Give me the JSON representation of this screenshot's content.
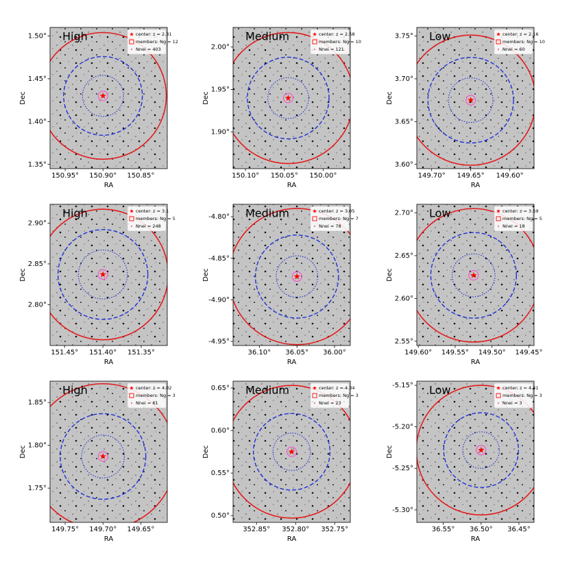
{
  "chart_data": [
    {
      "type": "sky",
      "label": "High",
      "legend": [
        "center: z = 2.31",
        "members: Ng = 12",
        "Nnei = 403"
      ],
      "xlabel": "RA",
      "ylabel": "Dec",
      "xlim": [
        150.97,
        150.815
      ],
      "ylim": [
        1.345,
        1.51
      ],
      "xticks": [
        {
          "value": 150.95,
          "label": "150.95°"
        },
        {
          "value": 150.9,
          "label": "150.90°"
        },
        {
          "value": 150.85,
          "label": "150.85°"
        }
      ],
      "yticks": [
        {
          "value": 1.35,
          "label": "1.35°"
        },
        {
          "value": 1.4,
          "label": "1.40°"
        },
        {
          "value": 1.45,
          "label": "1.45°"
        },
        {
          "value": 1.5,
          "label": "1.50°"
        }
      ],
      "center": [
        150.9,
        1.43
      ],
      "radii": [
        0.074,
        0.046,
        0.024
      ]
    },
    {
      "type": "sky",
      "label": "Medium",
      "legend": [
        "center: z = 2.58",
        "members: Ng = 10",
        "Nnei = 121"
      ],
      "xlabel": "RA",
      "ylabel": "Dec",
      "xlim": [
        150.116,
        149.965
      ],
      "ylim": [
        1.857,
        2.023
      ],
      "xticks": [
        {
          "value": 150.1,
          "label": "150.10°"
        },
        {
          "value": 150.05,
          "label": "150.05°"
        },
        {
          "value": 150.0,
          "label": "150.00°"
        }
      ],
      "yticks": [
        {
          "value": 1.9,
          "label": "1.90°"
        },
        {
          "value": 1.95,
          "label": "1.95°"
        },
        {
          "value": 2.0,
          "label": "2.00°"
        }
      ],
      "center": [
        150.045,
        1.94
      ],
      "radii": [
        0.077,
        0.048,
        0.024
      ]
    },
    {
      "type": "sky",
      "label": "Low",
      "legend": [
        "center: z = 2.16",
        "members: Ng = 10",
        "Nnei = 60"
      ],
      "xlabel": "RA",
      "ylabel": "Dec",
      "xlim": [
        149.719,
        149.569
      ],
      "ylim": [
        3.595,
        3.76
      ],
      "xticks": [
        {
          "value": 149.7,
          "label": "149.70°"
        },
        {
          "value": 149.65,
          "label": "149.65°"
        },
        {
          "value": 149.6,
          "label": "149.60°"
        }
      ],
      "yticks": [
        {
          "value": 3.6,
          "label": "3.60°"
        },
        {
          "value": 3.65,
          "label": "3.65°"
        },
        {
          "value": 3.7,
          "label": "3.70°"
        },
        {
          "value": 3.75,
          "label": "3.75°"
        }
      ],
      "center": [
        149.65,
        3.675
      ],
      "radii": [
        0.076,
        0.05,
        0.026
      ]
    },
    {
      "type": "sky",
      "label": "High",
      "legend": [
        "center: z = 3.1",
        "members: Ng = 5",
        "Nnei = 248"
      ],
      "xlabel": "RA",
      "ylabel": "Dec",
      "xlim": [
        151.469,
        151.316
      ],
      "ylim": [
        2.75,
        2.923
      ],
      "xticks": [
        {
          "value": 151.45,
          "label": "151.45°"
        },
        {
          "value": 151.4,
          "label": "151.40°"
        },
        {
          "value": 151.35,
          "label": "151.35°"
        }
      ],
      "yticks": [
        {
          "value": 2.8,
          "label": "2.80°"
        },
        {
          "value": 2.85,
          "label": "2.85°"
        },
        {
          "value": 2.9,
          "label": "2.90°"
        }
      ],
      "center": [
        151.4,
        2.837
      ],
      "radii": [
        0.08,
        0.055,
        0.03
      ]
    },
    {
      "type": "sky",
      "label": "Medium",
      "legend": [
        "center: z = 3.05",
        "members: Ng = 7",
        "Nnei = 78"
      ],
      "xlabel": "RA",
      "ylabel": "Dec",
      "xlim": [
        36.135,
        35.979
      ],
      "ylim": [
        -4.955,
        -4.785
      ],
      "xticks": [
        {
          "value": 36.1,
          "label": "36.10°"
        },
        {
          "value": 36.05,
          "label": "36.05°"
        },
        {
          "value": 36.0,
          "label": "36.00°"
        }
      ],
      "yticks": [
        {
          "value": -4.95,
          "label": "-4.95°"
        },
        {
          "value": -4.9,
          "label": "-4.90°"
        },
        {
          "value": -4.85,
          "label": "-4.85°"
        },
        {
          "value": -4.8,
          "label": "-4.80°"
        }
      ],
      "center": [
        36.05,
        -4.872
      ],
      "radii": [
        0.082,
        0.05,
        0.025
      ]
    },
    {
      "type": "sky",
      "label": "Low",
      "legend": [
        "center: z = 3.59",
        "members: Ng = 5",
        "Nnei = 18"
      ],
      "xlabel": "RA",
      "ylabel": "Dec",
      "xlim": [
        149.602,
        149.443
      ],
      "ylim": [
        2.545,
        2.71
      ],
      "xticks": [
        {
          "value": 149.6,
          "label": "149.60°"
        },
        {
          "value": 149.55,
          "label": "149.55°"
        },
        {
          "value": 149.5,
          "label": "149.50°"
        },
        {
          "value": 149.45,
          "label": "149.45°"
        }
      ],
      "yticks": [
        {
          "value": 2.55,
          "label": "2.55°"
        },
        {
          "value": 2.6,
          "label": "2.60°"
        },
        {
          "value": 2.65,
          "label": "2.65°"
        },
        {
          "value": 2.7,
          "label": "2.70°"
        }
      ],
      "center": [
        149.525,
        2.627
      ],
      "radii": [
        0.078,
        0.05,
        0.025
      ]
    },
    {
      "type": "sky",
      "label": "High",
      "legend": [
        "center: z = 4.02",
        "members: Ng = 3",
        "Nnei = 61"
      ],
      "xlabel": "RA",
      "ylabel": "Dec",
      "xlim": [
        149.77,
        149.615
      ],
      "ylim": [
        1.71,
        1.875
      ],
      "xticks": [
        {
          "value": 149.75,
          "label": "149.75°"
        },
        {
          "value": 149.7,
          "label": "149.70°"
        },
        {
          "value": 149.65,
          "label": "149.65°"
        }
      ],
      "yticks": [
        {
          "value": 1.75,
          "label": "1.75°"
        },
        {
          "value": 1.8,
          "label": "1.80°"
        },
        {
          "value": 1.85,
          "label": "1.85°"
        }
      ],
      "center": [
        149.7,
        1.787
      ],
      "radii": [
        0.085,
        0.05,
        0.025
      ]
    },
    {
      "type": "sky",
      "label": "Medium",
      "legend": [
        "center: z = 4.34",
        "members: Ng = 3",
        "Nnei = 23"
      ],
      "xlabel": "RA",
      "ylabel": "Dec",
      "xlim": [
        352.88,
        352.73
      ],
      "ylim": [
        0.492,
        0.658
      ],
      "xticks": [
        {
          "value": 352.85,
          "label": "352.85°"
        },
        {
          "value": 352.8,
          "label": "352.80°"
        },
        {
          "value": 352.75,
          "label": "352.75°"
        }
      ],
      "yticks": [
        {
          "value": 0.5,
          "label": "0.50°"
        },
        {
          "value": 0.55,
          "label": "0.55°"
        },
        {
          "value": 0.6,
          "label": "0.60°"
        },
        {
          "value": 0.65,
          "label": "0.65°"
        }
      ],
      "center": [
        352.805,
        0.575
      ],
      "radii": [
        0.078,
        0.045,
        0.022
      ]
    },
    {
      "type": "sky",
      "label": "Low",
      "legend": [
        "center: z = 4.41",
        "members: Ng = 3",
        "Nnei = 3"
      ],
      "xlabel": "RA",
      "ylabel": "Dec",
      "xlim": [
        36.585,
        36.43
      ],
      "ylim": [
        -5.315,
        -5.145
      ],
      "xticks": [
        {
          "value": 36.55,
          "label": "36.55°"
        },
        {
          "value": 36.5,
          "label": "36.50°"
        },
        {
          "value": 36.45,
          "label": "36.45°"
        }
      ],
      "yticks": [
        {
          "value": -5.3,
          "label": "-5.30°"
        },
        {
          "value": -5.25,
          "label": "-5.25°"
        },
        {
          "value": -5.2,
          "label": "-5.20°"
        },
        {
          "value": -5.15,
          "label": "-5.15°"
        }
      ],
      "center": [
        36.5,
        -5.228
      ],
      "radii": [
        0.078,
        0.045,
        0.022
      ]
    }
  ]
}
